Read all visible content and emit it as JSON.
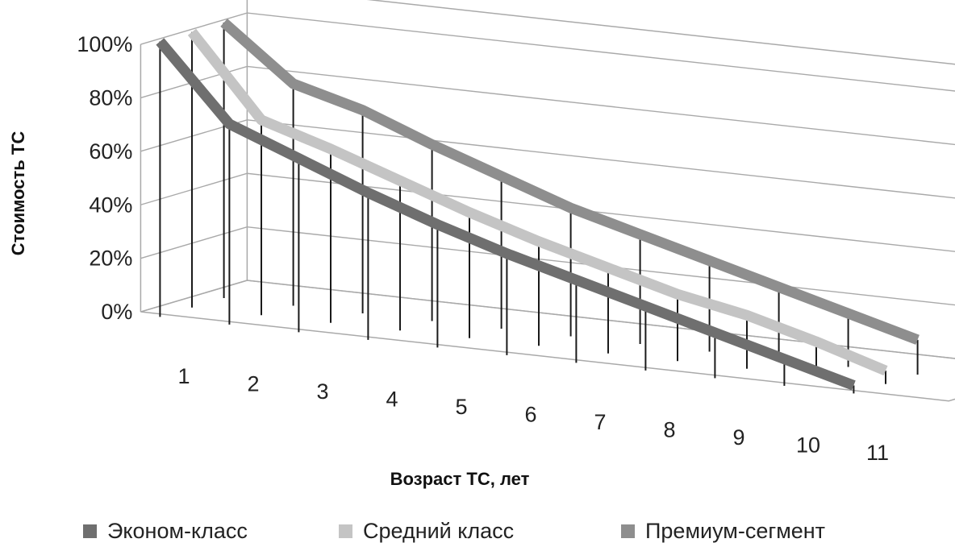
{
  "chart_data": {
    "type": "line",
    "title": "",
    "xlabel": "Возраст ТС, лет",
    "ylabel": "Стоимость ТС",
    "categories": [
      "1",
      "2",
      "3",
      "4",
      "5",
      "6",
      "7",
      "8",
      "9",
      "10",
      "11"
    ],
    "y_ticks": [
      "0%",
      "20%",
      "40%",
      "60%",
      "80%",
      "100%"
    ],
    "ylim": [
      0,
      100
    ],
    "grid": true,
    "legend_position": "bottom",
    "three_d": true,
    "series": [
      {
        "name": "Эконом-класс",
        "color": "#6f6f6f",
        "values": [
          100,
          72,
          62,
          52,
          43,
          35,
          28,
          21,
          14,
          7,
          0
        ]
      },
      {
        "name": "Средний класс",
        "color": "#c4c4c4",
        "values": [
          100,
          70,
          62,
          53,
          44,
          36,
          29,
          22,
          17,
          10,
          2
        ]
      },
      {
        "name": "Премиум-сегмент",
        "color": "#8e8e8e",
        "values": [
          100,
          80,
          73,
          63,
          54,
          45,
          38,
          31,
          24,
          17,
          10
        ]
      }
    ]
  }
}
